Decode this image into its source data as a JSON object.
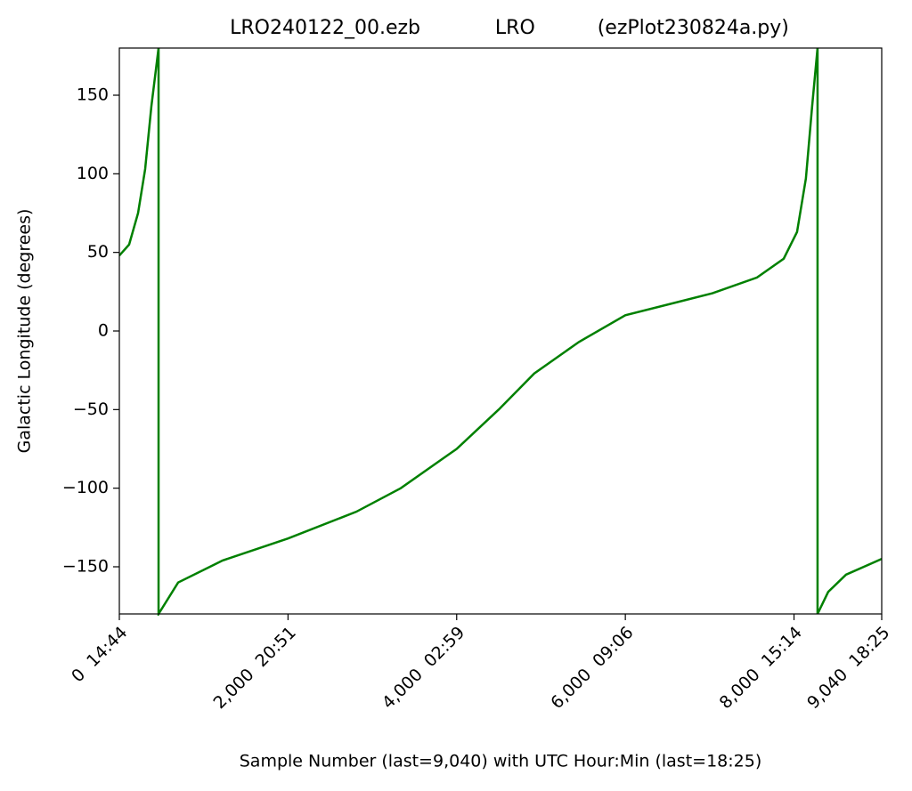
{
  "chart_data": {
    "type": "line",
    "title": "LRO240122_00.ezb            LRO          (ezPlot230824a.py)",
    "x_label": "Sample Number (last=9,040) with UTC Hour:Min (last=18:25)",
    "y_label": "Galactic Longitude (degrees)",
    "x": [
      0,
      116,
      222,
      306,
      380,
      465,
      465,
      697,
      1225,
      2000,
      2809,
      3337,
      4000,
      4498,
      4920,
      5449,
      6000,
      7033,
      7561,
      7878,
      8036,
      8141,
      8215,
      8279,
      8279,
      8405,
      8617,
      9040
    ],
    "series": [
      {
        "color": "#008000",
        "values": [
          48,
          55,
          75,
          103,
          143,
          180,
          -180,
          -160,
          -146,
          -132,
          -115,
          -100,
          -75,
          -50,
          -27,
          -7,
          10,
          24,
          34,
          46,
          63,
          97,
          143,
          180,
          -180,
          -166,
          -155,
          -145
        ]
      }
    ],
    "xlim": [
      0,
      9040
    ],
    "xticks": [
      {
        "value": 0,
        "label": "0  14:44"
      },
      {
        "value": 2000,
        "label": "2,000  20:51"
      },
      {
        "value": 4000,
        "label": "4,000  02:59"
      },
      {
        "value": 6000,
        "label": "6,000  09:06"
      },
      {
        "value": 8000,
        "label": "8,000  15:14"
      },
      {
        "value": 9040,
        "label": "9,040  18:25"
      }
    ],
    "ylim": [
      -180,
      180
    ],
    "yticks": [
      {
        "value": -150,
        "label": "−150"
      },
      {
        "value": -100,
        "label": "−100"
      },
      {
        "value": -50,
        "label": "−50"
      },
      0,
      50,
      100,
      150
    ],
    "grid": false
  }
}
